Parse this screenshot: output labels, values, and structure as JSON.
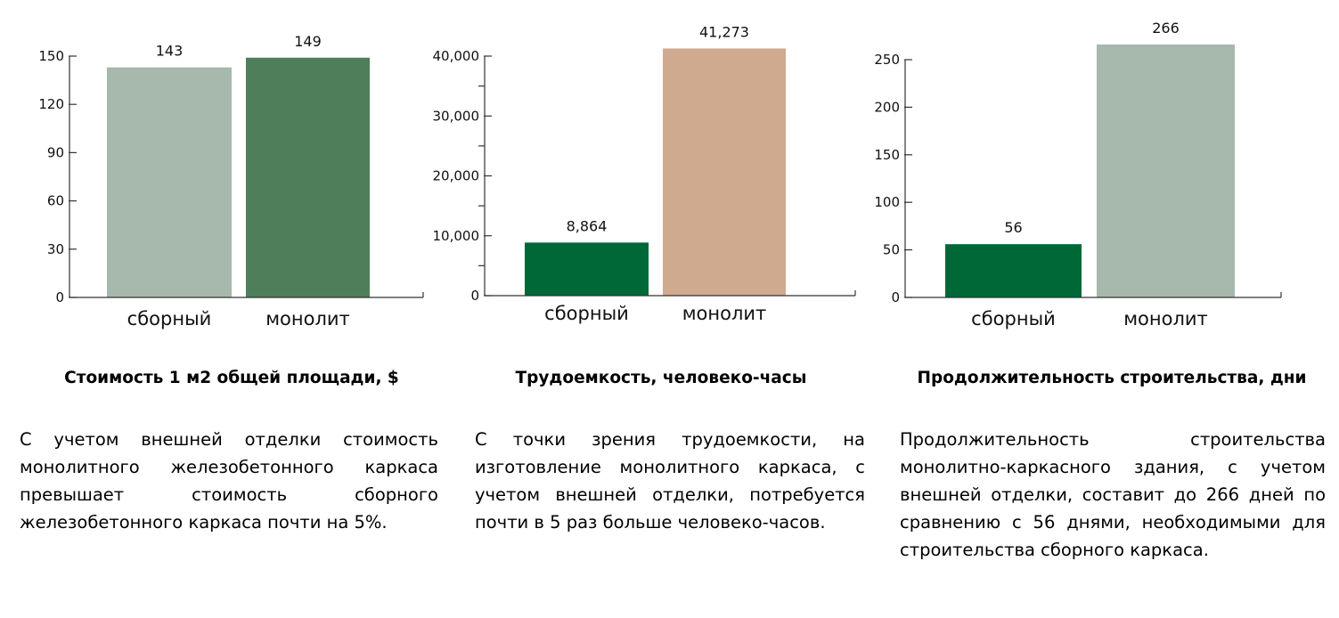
{
  "chart_data": [
    {
      "type": "bar",
      "categories": [
        "сборный",
        "монолит"
      ],
      "values": [
        143,
        149
      ],
      "colors": [
        "#a7b8ad",
        "#4e7f5a"
      ],
      "bar_labels": [
        "143",
        "149"
      ],
      "yticks": [
        0,
        30,
        60,
        90,
        120,
        150
      ],
      "ytick_labels": [
        "0",
        "30",
        "60",
        "90",
        "120",
        "150"
      ],
      "ylim": [
        0,
        150
      ],
      "title": "Стоимость 1 м2 общей площади, $",
      "description": "С учетом внешней отделки стоимость монолитного железобетонного каркаса превышает стоимость сборного железобетонного каркаса почти на 5%."
    },
    {
      "type": "bar",
      "categories": [
        "сборный",
        "монолит"
      ],
      "values": [
        8864,
        41273
      ],
      "colors": [
        "#006837",
        "#d0aa8f"
      ],
      "bar_labels": [
        "8,864",
        "41,273"
      ],
      "yticks": [
        0,
        10000,
        20000,
        30000,
        40000
      ],
      "ytick_labels": [
        "0",
        "10,000",
        "20,000",
        "30,000",
        "40,000"
      ],
      "ylim": [
        0,
        40000
      ],
      "title": "Трудоемкость, человеко-часы",
      "description": "С точки зрения трудоемкости, на изготовление монолитного каркаса, с учетом внешней отделки, потребуется почти в 5 раз больше человеко-часов."
    },
    {
      "type": "bar",
      "categories": [
        "сборный",
        "монолит"
      ],
      "values": [
        56,
        266
      ],
      "colors": [
        "#006837",
        "#a7b8ad"
      ],
      "bar_labels": [
        "56",
        "266"
      ],
      "yticks": [
        0,
        50,
        100,
        150,
        200,
        250
      ],
      "ytick_labels": [
        "0",
        "50",
        "100",
        "150",
        "200",
        "250"
      ],
      "ylim": [
        0,
        250
      ],
      "title": "Продолжительность строительства, дни",
      "description": "Продолжительность строительства монолитно-каркасного здания, с учетом внешней отделки, составит до 266 дней по сравнению с 56 днями, необходимыми для строительства сборного каркаса."
    }
  ]
}
